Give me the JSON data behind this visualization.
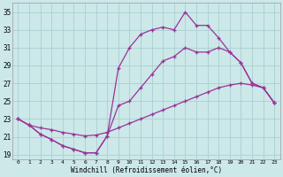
{
  "xlabel": "Windchill (Refroidissement éolien,°C)",
  "background_color": "#cce8e8",
  "grid_color": "#aacfcf",
  "line_color": "#993399",
  "xlim": [
    -0.5,
    23.5
  ],
  "ylim": [
    18.5,
    36.0
  ],
  "yticks": [
    19,
    21,
    23,
    25,
    27,
    29,
    31,
    33,
    35
  ],
  "xticks": [
    0,
    1,
    2,
    3,
    4,
    5,
    6,
    7,
    8,
    9,
    10,
    11,
    12,
    13,
    14,
    15,
    16,
    17,
    18,
    19,
    20,
    21,
    22,
    23
  ],
  "line_upper_x": [
    0,
    1,
    2,
    3,
    4,
    5,
    6,
    7,
    8,
    9,
    10,
    11,
    12,
    13,
    14,
    15,
    16,
    17,
    18,
    19,
    20,
    21,
    22,
    23
  ],
  "line_upper_y": [
    23.0,
    22.3,
    21.3,
    20.7,
    20.0,
    19.6,
    19.2,
    19.2,
    21.1,
    28.7,
    31.0,
    32.5,
    33.0,
    33.3,
    33.0,
    35.0,
    33.5,
    33.5,
    32.1,
    30.5,
    29.3,
    27.0,
    26.5,
    24.8
  ],
  "line_mid_x": [
    0,
    1,
    2,
    3,
    4,
    5,
    6,
    7,
    8,
    9,
    10,
    11,
    12,
    13,
    14,
    15,
    16,
    17,
    18,
    19,
    20,
    21,
    22,
    23
  ],
  "line_mid_y": [
    23.0,
    22.3,
    21.3,
    20.7,
    20.0,
    19.6,
    19.2,
    19.2,
    21.1,
    24.5,
    25.0,
    26.5,
    28.0,
    29.5,
    30.0,
    31.0,
    30.5,
    30.5,
    31.0,
    30.5,
    29.3,
    27.0,
    26.5,
    24.8
  ],
  "line_low_x": [
    0,
    1,
    2,
    3,
    4,
    5,
    6,
    7,
    8,
    9,
    10,
    11,
    12,
    13,
    14,
    15,
    16,
    17,
    18,
    19,
    20,
    21,
    22,
    23
  ],
  "line_low_y": [
    23.0,
    22.3,
    22.0,
    21.8,
    21.5,
    21.3,
    21.1,
    21.2,
    21.5,
    22.0,
    22.5,
    23.0,
    23.5,
    24.0,
    24.5,
    25.0,
    25.5,
    26.0,
    26.5,
    26.8,
    27.0,
    26.8,
    26.5,
    24.8
  ]
}
